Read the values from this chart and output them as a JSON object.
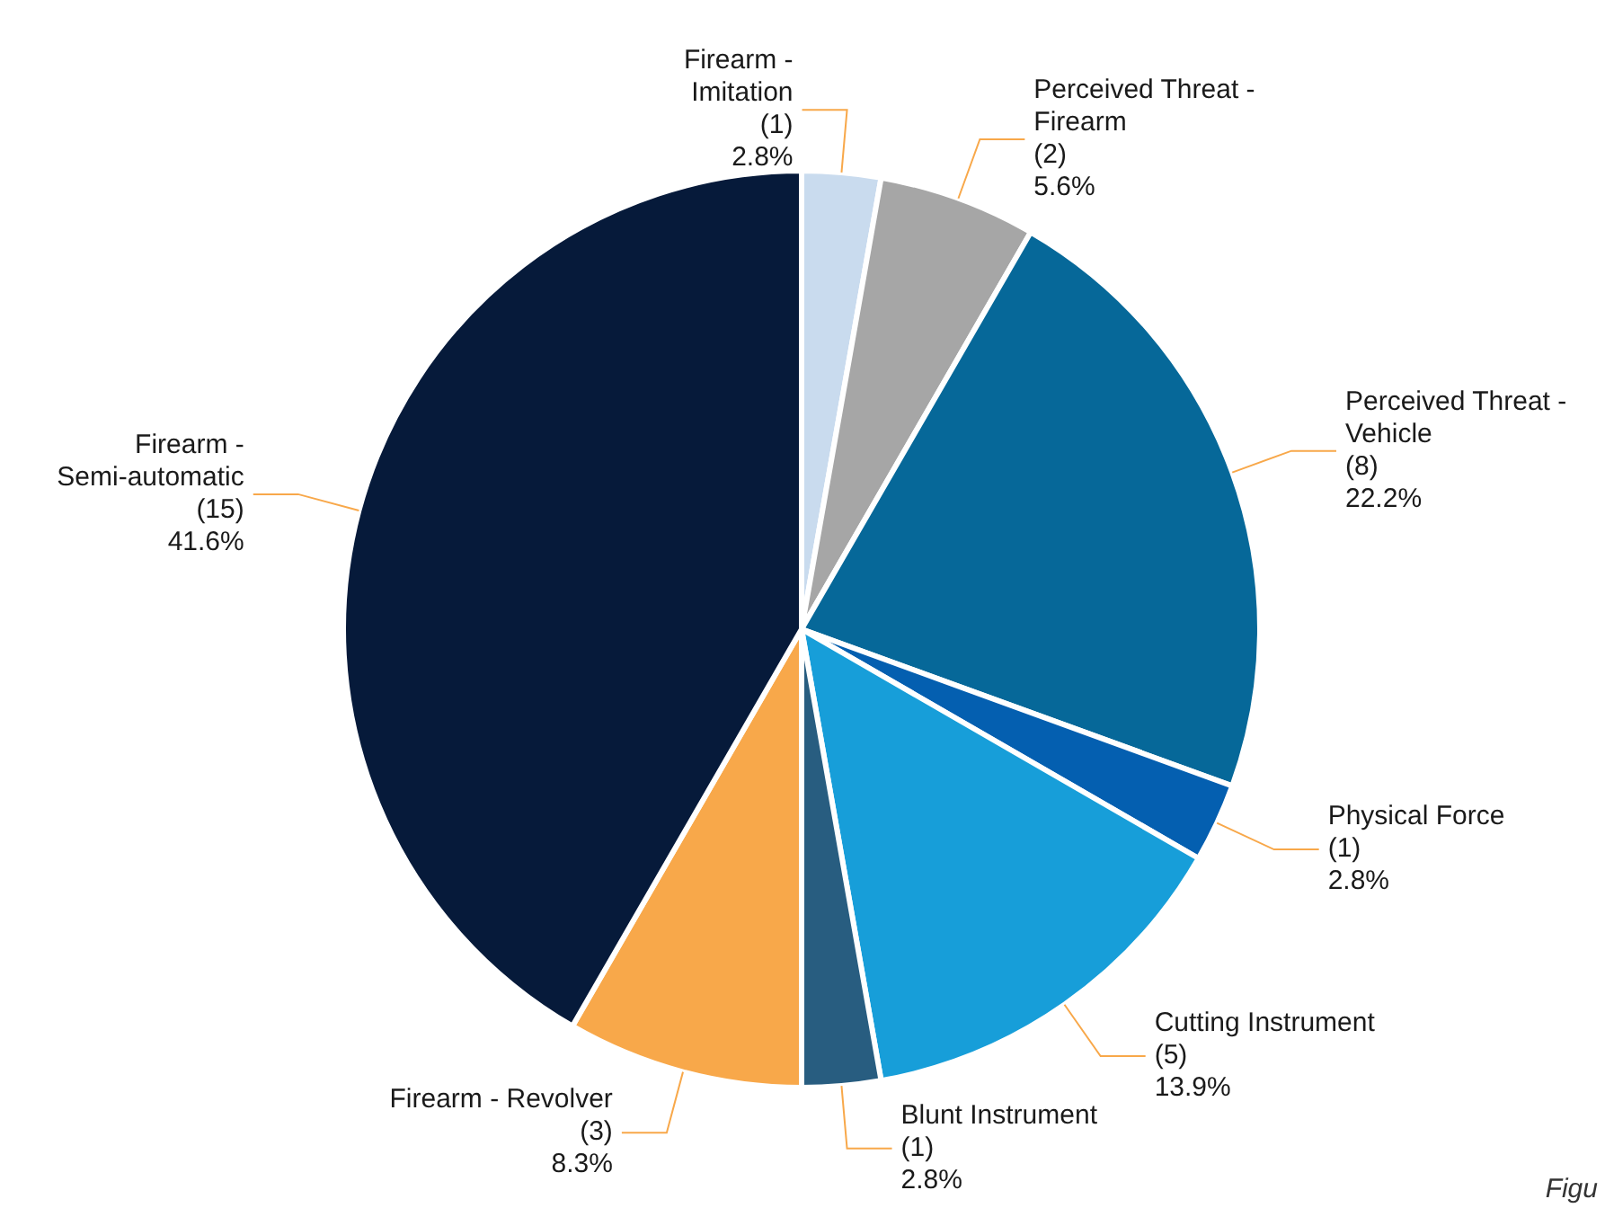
{
  "chart_data": {
    "type": "pie",
    "categories": [
      "Firearm - Imitation",
      "Perceived Threat - Firearm",
      "Perceived Threat - Vehicle",
      "Physical Force",
      "Cutting Instrument",
      "Blunt Instrument",
      "Firearm - Revolver",
      "Firearm - Semi-automatic"
    ],
    "values": [
      1,
      2,
      8,
      1,
      5,
      1,
      3,
      15
    ],
    "colors": [
      "#c9dbee",
      "#a6a6a6",
      "#066899",
      "#045fb0",
      "#179ed9",
      "#285d80",
      "#f8a84a",
      "#061a3a"
    ],
    "value_labels": [
      "(1) 2.8%",
      "(2) 5.6%",
      "(8) 22.2%",
      "(1) 2.8%",
      "(5) 13.9%",
      "(1) 2.8%",
      "(3) 8.3%",
      "(15) 41.6%"
    ],
    "annotations": [
      "Figu"
    ],
    "legend": false
  }
}
